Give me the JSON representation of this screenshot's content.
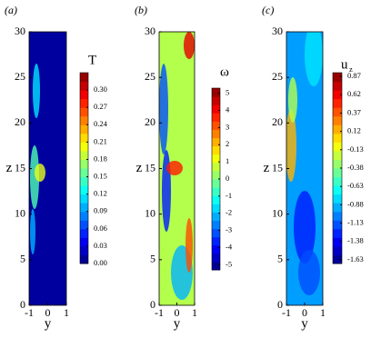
{
  "chart_data": [
    {
      "type": "contour",
      "panel_label": "(a)",
      "colorbar_title": "T",
      "x_label": "y",
      "y_label": "z",
      "xlim": [
        -1,
        1
      ],
      "xticks": [
        -1,
        0,
        1
      ],
      "ylim": [
        0,
        30
      ],
      "yticks": [
        0,
        5,
        10,
        15,
        20,
        25,
        30
      ],
      "clim": [
        0,
        0.33
      ],
      "colormap": "jet",
      "cticks": [
        {
          "value": 0,
          "label": "0.00"
        },
        0.03,
        0.06,
        0.09,
        0.12,
        0.15,
        0.18,
        0.21,
        0.24,
        0.27,
        {
          "value": 0.3,
          "label": "0.30"
        }
      ]
    },
    {
      "type": "contour",
      "panel_label": "(b)",
      "colorbar_title": "ω",
      "x_label": "y",
      "y_label": "z",
      "xlim": [
        -1,
        1
      ],
      "xticks": [
        -1,
        0,
        1
      ],
      "ylim": [
        0,
        30
      ],
      "yticks": [
        0,
        5,
        10,
        15,
        20,
        25,
        30
      ],
      "clim": [
        -5.3,
        5.3
      ],
      "colormap": "jet",
      "cticks": [
        -5,
        -4,
        -3,
        -2,
        -1,
        0,
        1,
        2,
        3,
        4,
        5
      ]
    },
    {
      "type": "contour",
      "panel_label": "(c)",
      "colorbar_title": "u",
      "colorbar_title_subscript": "z",
      "x_label": "y",
      "y_label": "z",
      "xlim": [
        -1,
        1
      ],
      "xticks": [
        -1,
        0,
        1
      ],
      "ylim": [
        0,
        30
      ],
      "yticks": [
        0,
        5,
        10,
        15,
        20,
        25,
        30
      ],
      "clim": [
        -1.68,
        0.92
      ],
      "colormap": "jet",
      "cticks": [
        -1.63,
        -1.38,
        -1.13,
        -0.88,
        -0.63,
        -0.38,
        -0.13,
        0.12,
        0.37,
        0.62,
        0.87
      ]
    }
  ]
}
